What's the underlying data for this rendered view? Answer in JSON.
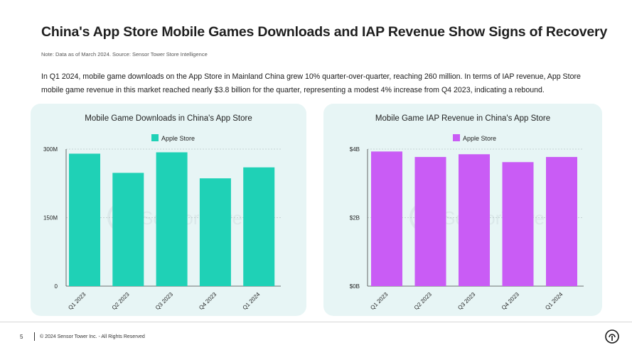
{
  "page": {
    "title": "China's App Store Mobile Games Downloads and IAP Revenue Show Signs of Recovery",
    "note": "Note: Data as of March 2024. Source: Sensor Tower Store Intelligence",
    "description": "In Q1 2024, mobile game downloads on the App Store in Mainland China grew 10% quarter-over-quarter, reaching 260 million. In terms of IAP revenue, App Store mobile game revenue in this market reached nearly $3.8 billion for the quarter, representing a modest 4% increase from Q4 2023, indicating a rebound.",
    "watermark": "SensorTower",
    "page_number": "5",
    "copyright": "© 2024 Sensor Tower Inc. - All Rights Reserved"
  },
  "colors": {
    "downloads_bar": "#1fd1b6",
    "revenue_bar": "#c95cf5",
    "panel_bg": "#e7f5f5",
    "watermark": "#dbe9ea"
  },
  "chart_data": [
    {
      "type": "bar",
      "title": "Mobile Game Downloads in China's App Store",
      "categories": [
        "Q1 2023",
        "Q2 2023",
        "Q3 2023",
        "Q4 2023",
        "Q1 2024"
      ],
      "series": [
        {
          "name": "Apple Store",
          "values": [
            290,
            248,
            293,
            236,
            260
          ]
        }
      ],
      "ylim": [
        0,
        300
      ],
      "yticks": [
        {
          "value": 0,
          "label": "0"
        },
        {
          "value": 150,
          "label": "150M"
        },
        {
          "value": 300,
          "label": "300M"
        }
      ],
      "xlabel": "",
      "ylabel": "",
      "grid": true,
      "legend": "top-center"
    },
    {
      "type": "bar",
      "title": "Mobile Game IAP Revenue in China's App Store",
      "categories": [
        "Q1 2023",
        "Q2 2023",
        "Q3 2023",
        "Q4 2023",
        "Q1 2024"
      ],
      "series": [
        {
          "name": "Apple Store",
          "values": [
            3.93,
            3.77,
            3.85,
            3.62,
            3.77
          ]
        }
      ],
      "ylim": [
        0,
        4
      ],
      "yticks": [
        {
          "value": 0,
          "label": "$0B"
        },
        {
          "value": 2,
          "label": "$2B"
        },
        {
          "value": 4,
          "label": "$4B"
        }
      ],
      "xlabel": "",
      "ylabel": "",
      "grid": true,
      "legend": "top-center"
    }
  ]
}
